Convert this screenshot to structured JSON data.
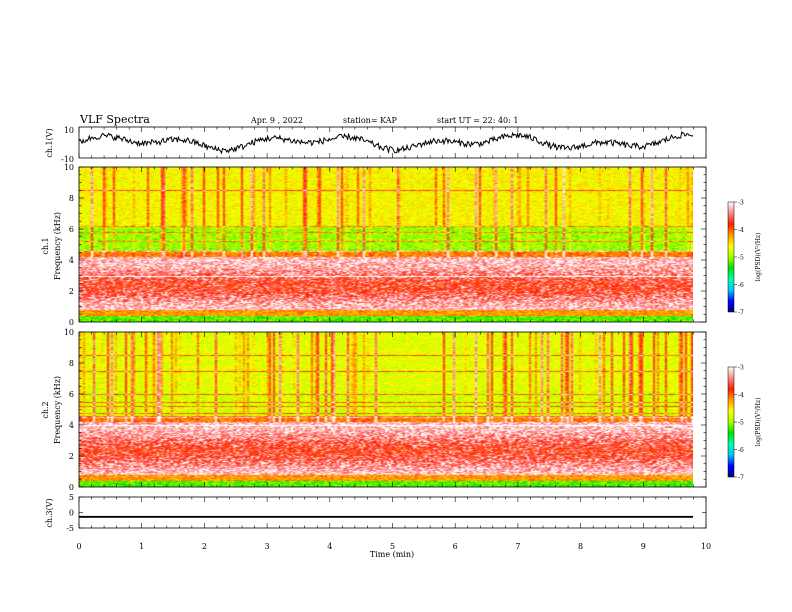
{
  "header": {
    "title": "VLF Spectra",
    "date": "Apr. 9 , 2022",
    "station": "station= KAP",
    "start_time": "start UT = 22: 40: 1"
  },
  "colorbars": {
    "label": "log(PSD)(V²/Hz)",
    "tick_labels": [
      "-3",
      "-4",
      "-5",
      "-6",
      "-7"
    ],
    "colors": [
      "#000088",
      "#0000ff",
      "#00c8ff",
      "#00ffaa",
      "#00e000",
      "#aaff00",
      "#ffff00",
      "#ff9900",
      "#ff2000",
      "#ff8888",
      "#ffffff"
    ]
  },
  "chart_data": [
    {
      "type": "line",
      "panel": "ch1",
      "ylabel": "ch.1(V)",
      "ylim": [
        -10,
        10
      ],
      "y_tick_labels": [
        "10",
        "-10"
      ],
      "xlim": [
        0,
        10
      ],
      "description_values": "waveform envelope oscillating roughly between -6 and 6 V",
      "y_range_observed": [
        -7,
        7
      ]
    },
    {
      "type": "heatmap",
      "panel": "ch1-spectrogram",
      "ylabel": "ch.1 Frequency (kHz)",
      "ylim": [
        0,
        10
      ],
      "y_tick_labels": [
        "0",
        "2",
        "4",
        "6",
        "8",
        "10"
      ],
      "xlim": [
        0,
        10
      ],
      "zlim": [
        -7,
        -3
      ],
      "colorbar_label": "log(PSD)(V²/Hz)"
    },
    {
      "type": "heatmap",
      "panel": "ch2-spectrogram",
      "ylabel": "ch.2 Frequency (kHz)",
      "ylim": [
        0,
        10
      ],
      "y_tick_labels": [
        "0",
        "2",
        "4",
        "6",
        "8",
        "10"
      ],
      "xlim": [
        0,
        10
      ],
      "zlim": [
        -7,
        -3
      ],
      "colorbar_label": "log(PSD)(V²/Hz)"
    },
    {
      "type": "line",
      "panel": "ch3",
      "ylabel": "ch.3(V)",
      "ylim": [
        -5,
        5
      ],
      "y_tick_labels": [
        "5",
        "0",
        "-5"
      ],
      "xlim": [
        0,
        10
      ],
      "x_tick_labels": [
        "0",
        "1",
        "2",
        "3",
        "4",
        "5",
        "6",
        "7",
        "8",
        "9",
        "10"
      ],
      "xlabel": "Time (min)",
      "y_range_observed": [
        -1.7,
        -1.1
      ]
    }
  ]
}
